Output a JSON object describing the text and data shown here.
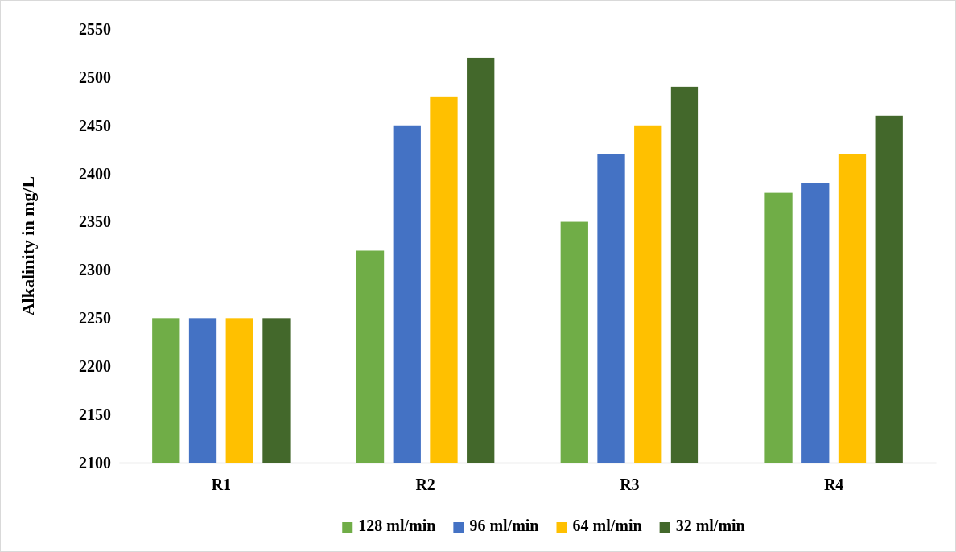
{
  "chart_data": {
    "type": "bar",
    "ylabel": "Alkalinity in mg/L",
    "categories": [
      "R1",
      "R2",
      "R3",
      "R4"
    ],
    "series": [
      {
        "name": "128 ml/min",
        "color": "#70ad47",
        "values": [
          2250,
          2320,
          2350,
          2380
        ]
      },
      {
        "name": "96 ml/min",
        "color": "#4472c4",
        "values": [
          2250,
          2450,
          2420,
          2390
        ]
      },
      {
        "name": "64 ml/min",
        "color": "#ffc000",
        "values": [
          2250,
          2480,
          2450,
          2420
        ]
      },
      {
        "name": "32 ml/min",
        "color": "#43682b",
        "values": [
          2250,
          2520,
          2490,
          2460
        ]
      }
    ],
    "ylim": [
      2100,
      2550
    ],
    "yticks": [
      2100,
      2150,
      2200,
      2250,
      2300,
      2350,
      2400,
      2450,
      2500,
      2550
    ],
    "grid": false,
    "legend": "bottom"
  }
}
